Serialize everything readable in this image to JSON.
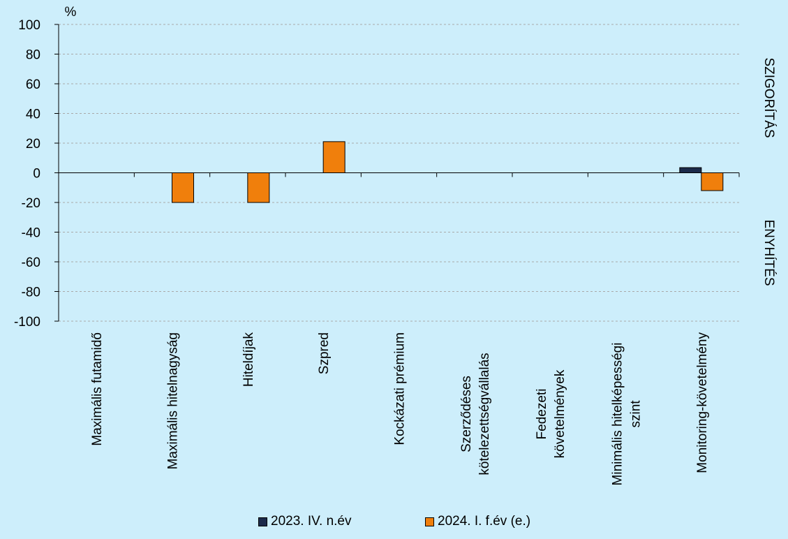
{
  "chart_data": {
    "type": "bar",
    "ylabel": "%",
    "ylim": [
      -100,
      100
    ],
    "yticks": [
      100,
      80,
      60,
      40,
      20,
      0,
      -20,
      -40,
      -60,
      -80,
      -100
    ],
    "grid": true,
    "right_labels": {
      "upper": "SZIGORÍTÁS",
      "lower": "ENYHÍTÉS"
    },
    "categories": [
      [
        "Maximális futamidő"
      ],
      [
        "Maximális hitelnagyság"
      ],
      [
        "Hiteldíjak"
      ],
      [
        "Szpred"
      ],
      [
        "Kockázati prémium"
      ],
      [
        "Szerződéses",
        "kötelezettségvállalás"
      ],
      [
        "Fedezeti",
        "követelmények"
      ],
      [
        "Minimális hitelképességi",
        "szint"
      ],
      [
        "Monitoring-követelmény"
      ]
    ],
    "series": [
      {
        "name": "2023. IV. n.év",
        "color": "#1b2a4a",
        "values": [
          0,
          0,
          0,
          0,
          0,
          0,
          0,
          0,
          3.5
        ]
      },
      {
        "name": "2024. I. f.év (e.)",
        "color": "#f07f0c",
        "values": [
          0,
          -20,
          -20,
          21,
          0,
          0,
          0,
          0,
          -12
        ]
      }
    ],
    "legend_position": "bottom"
  }
}
